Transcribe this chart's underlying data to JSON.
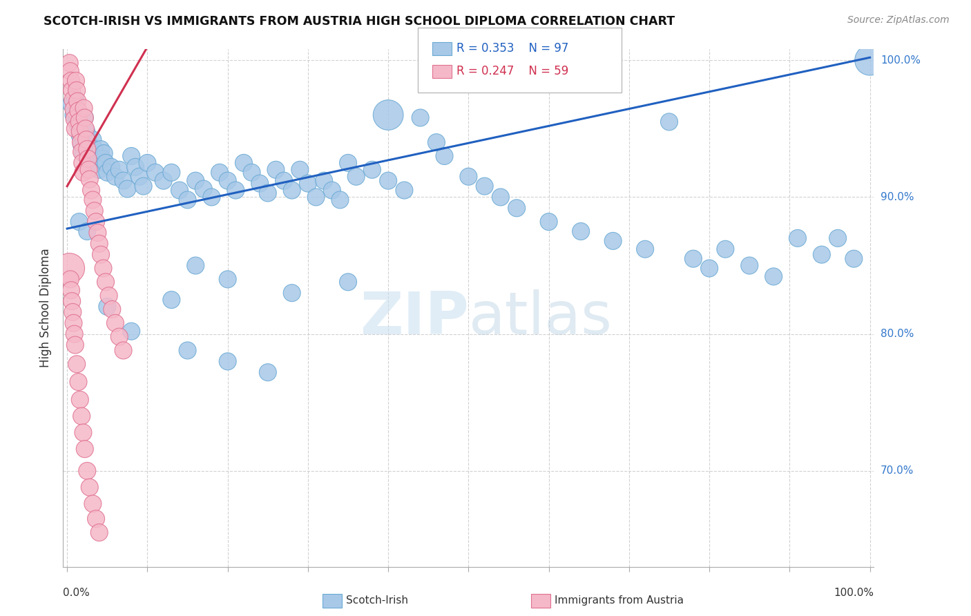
{
  "title": "SCOTCH-IRISH VS IMMIGRANTS FROM AUSTRIA HIGH SCHOOL DIPLOMA CORRELATION CHART",
  "source": "Source: ZipAtlas.com",
  "ylabel": "High School Diploma",
  "ylim": [
    0.63,
    1.008
  ],
  "xlim": [
    -0.005,
    1.005
  ],
  "yticks": [
    0.7,
    0.8,
    0.9,
    1.0
  ],
  "ytick_labels": [
    "70.0%",
    "80.0%",
    "90.0%",
    "100.0%"
  ],
  "legend_blue_r": "R = 0.353",
  "legend_blue_n": "N = 97",
  "legend_pink_r": "R = 0.247",
  "legend_pink_n": "N = 59",
  "blue_color": "#a8c8e8",
  "blue_edge": "#6aaad4",
  "pink_color": "#f5b8c8",
  "pink_edge": "#e07090",
  "trend_blue": "#2060c0",
  "trend_pink": "#d03050",
  "watermark": "ZIPatlas",
  "blue_trendline": [
    [
      0.0,
      0.877
    ],
    [
      1.0,
      1.002
    ]
  ],
  "pink_trendline": [
    [
      0.0,
      0.908
    ],
    [
      0.115,
      1.025
    ]
  ],
  "blue_scatter_x": [
    0.005,
    0.008,
    0.01,
    0.012,
    0.014,
    0.016,
    0.018,
    0.02,
    0.022,
    0.024,
    0.026,
    0.028,
    0.03,
    0.032,
    0.034,
    0.036,
    0.038,
    0.04,
    0.042,
    0.044,
    0.046,
    0.048,
    0.05,
    0.055,
    0.06,
    0.065,
    0.07,
    0.075,
    0.08,
    0.085,
    0.09,
    0.095,
    0.1,
    0.11,
    0.12,
    0.13,
    0.14,
    0.15,
    0.16,
    0.17,
    0.18,
    0.19,
    0.2,
    0.21,
    0.22,
    0.23,
    0.24,
    0.25,
    0.26,
    0.27,
    0.28,
    0.29,
    0.3,
    0.31,
    0.32,
    0.33,
    0.34,
    0.35,
    0.36,
    0.38,
    0.4,
    0.42,
    0.44,
    0.46,
    0.47,
    0.5,
    0.52,
    0.54,
    0.56,
    0.6,
    0.64,
    0.68,
    0.72,
    0.75,
    0.78,
    0.8,
    0.82,
    0.85,
    0.88,
    0.91,
    0.94,
    0.96,
    0.98,
    1.0,
    0.015,
    0.025,
    0.05,
    0.08,
    0.13,
    0.16,
    0.2,
    0.28,
    0.35,
    0.4,
    0.15,
    0.2,
    0.25
  ],
  "blue_scatter_y": [
    0.968,
    0.96,
    0.972,
    0.958,
    0.952,
    0.945,
    0.938,
    0.932,
    0.958,
    0.948,
    0.942,
    0.935,
    0.928,
    0.942,
    0.935,
    0.928,
    0.925,
    0.92,
    0.935,
    0.928,
    0.932,
    0.925,
    0.918,
    0.922,
    0.915,
    0.92,
    0.912,
    0.906,
    0.93,
    0.922,
    0.915,
    0.908,
    0.925,
    0.918,
    0.912,
    0.918,
    0.905,
    0.898,
    0.912,
    0.906,
    0.9,
    0.918,
    0.912,
    0.905,
    0.925,
    0.918,
    0.91,
    0.903,
    0.92,
    0.912,
    0.905,
    0.92,
    0.91,
    0.9,
    0.912,
    0.905,
    0.898,
    0.925,
    0.915,
    0.92,
    0.912,
    0.905,
    0.958,
    0.94,
    0.93,
    0.915,
    0.908,
    0.9,
    0.892,
    0.882,
    0.875,
    0.868,
    0.862,
    0.955,
    0.855,
    0.848,
    0.862,
    0.85,
    0.842,
    0.87,
    0.858,
    0.87,
    0.855,
    1.0,
    0.882,
    0.875,
    0.82,
    0.802,
    0.825,
    0.85,
    0.84,
    0.83,
    0.838,
    0.96,
    0.788,
    0.78,
    0.772
  ],
  "blue_scatter_size": [
    18,
    18,
    18,
    18,
    18,
    18,
    18,
    18,
    18,
    18,
    18,
    18,
    18,
    18,
    18,
    18,
    18,
    18,
    18,
    18,
    18,
    18,
    18,
    18,
    18,
    18,
    18,
    18,
    18,
    18,
    18,
    18,
    18,
    18,
    18,
    18,
    18,
    18,
    18,
    18,
    18,
    18,
    18,
    18,
    18,
    18,
    18,
    18,
    18,
    18,
    18,
    18,
    18,
    18,
    18,
    18,
    18,
    18,
    18,
    18,
    18,
    18,
    18,
    18,
    18,
    18,
    18,
    18,
    18,
    18,
    18,
    18,
    18,
    18,
    18,
    18,
    18,
    18,
    18,
    18,
    18,
    18,
    18,
    55,
    18,
    18,
    18,
    18,
    18,
    18,
    18,
    18,
    18,
    55,
    18,
    18,
    18
  ],
  "pink_scatter_x": [
    0.003,
    0.004,
    0.005,
    0.006,
    0.007,
    0.008,
    0.009,
    0.01,
    0.011,
    0.012,
    0.013,
    0.014,
    0.015,
    0.016,
    0.017,
    0.018,
    0.019,
    0.02,
    0.021,
    0.022,
    0.023,
    0.024,
    0.025,
    0.026,
    0.027,
    0.028,
    0.03,
    0.032,
    0.034,
    0.036,
    0.038,
    0.04,
    0.042,
    0.045,
    0.048,
    0.052,
    0.056,
    0.06,
    0.065,
    0.07,
    0.003,
    0.004,
    0.005,
    0.006,
    0.007,
    0.008,
    0.009,
    0.01,
    0.012,
    0.014,
    0.016,
    0.018,
    0.02,
    0.022,
    0.025,
    0.028,
    0.032,
    0.036,
    0.04
  ],
  "pink_scatter_y": [
    0.998,
    0.992,
    0.985,
    0.978,
    0.971,
    0.964,
    0.957,
    0.95,
    0.985,
    0.978,
    0.97,
    0.963,
    0.955,
    0.948,
    0.94,
    0.933,
    0.925,
    0.918,
    0.965,
    0.958,
    0.95,
    0.942,
    0.935,
    0.928,
    0.92,
    0.913,
    0.905,
    0.898,
    0.89,
    0.882,
    0.874,
    0.866,
    0.858,
    0.848,
    0.838,
    0.828,
    0.818,
    0.808,
    0.798,
    0.788,
    0.848,
    0.84,
    0.832,
    0.824,
    0.816,
    0.808,
    0.8,
    0.792,
    0.778,
    0.765,
    0.752,
    0.74,
    0.728,
    0.716,
    0.7,
    0.688,
    0.676,
    0.665,
    0.655
  ],
  "pink_scatter_size": [
    18,
    18,
    18,
    18,
    18,
    18,
    18,
    18,
    18,
    18,
    18,
    18,
    18,
    18,
    18,
    18,
    18,
    18,
    18,
    18,
    18,
    18,
    18,
    18,
    18,
    18,
    18,
    18,
    18,
    18,
    18,
    18,
    18,
    18,
    18,
    18,
    18,
    18,
    18,
    18,
    55,
    18,
    18,
    18,
    18,
    18,
    18,
    18,
    18,
    18,
    18,
    18,
    18,
    18,
    18,
    18,
    18,
    18,
    18
  ]
}
